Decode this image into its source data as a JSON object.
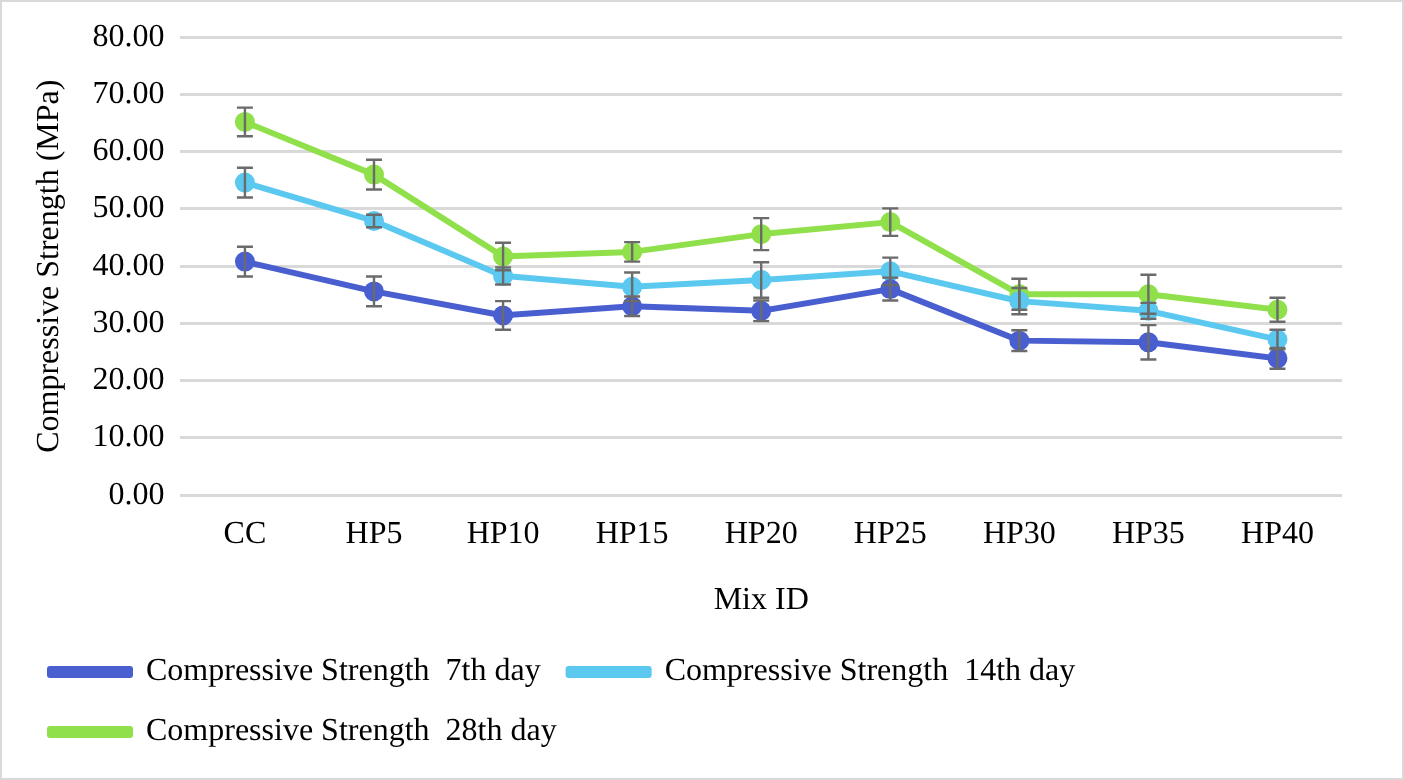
{
  "chart_data": {
    "type": "line",
    "xlabel": "Mix ID",
    "ylabel": "Compressive Strength (MPa)",
    "categories": [
      "CC",
      "HP5",
      "HP10",
      "HP15",
      "HP20",
      "HP25",
      "HP30",
      "HP35",
      "HP40"
    ],
    "series": [
      {
        "name": "Compressive Strength  7th day",
        "color": "#4a5fcf",
        "values": [
          40.8,
          35.6,
          31.4,
          33.0,
          32.2,
          36.0,
          27.0,
          26.7,
          23.9
        ],
        "errors": [
          2.6,
          2.6,
          2.5,
          1.7,
          1.8,
          2.0,
          1.8,
          3.0,
          1.8
        ]
      },
      {
        "name": "Compressive Strength  14th day",
        "color": "#5bc8f0",
        "values": [
          54.6,
          47.9,
          38.3,
          36.4,
          37.6,
          39.1,
          33.9,
          32.2,
          27.2
        ],
        "errors": [
          2.6,
          1.1,
          1.5,
          2.5,
          3.1,
          2.4,
          2.3,
          1.4,
          1.7
        ]
      },
      {
        "name": "Compressive Strength  28th day",
        "color": "#8fe04a",
        "values": [
          65.2,
          56.0,
          41.7,
          42.5,
          45.6,
          47.7,
          35.1,
          35.1,
          32.4
        ],
        "errors": [
          2.5,
          2.6,
          2.4,
          1.7,
          2.8,
          2.4,
          2.7,
          3.4,
          2.1
        ]
      }
    ],
    "ylim": [
      0,
      80
    ],
    "yticks": [
      {
        "value": 0,
        "label": "0.00"
      },
      {
        "value": 10,
        "label": "10.00"
      },
      {
        "value": 20,
        "label": "20.00"
      },
      {
        "value": 30,
        "label": "30.00"
      },
      {
        "value": 40,
        "label": "40.00"
      },
      {
        "value": 50,
        "label": "50.00"
      },
      {
        "value": 60,
        "label": "60.00"
      },
      {
        "value": 70,
        "label": "70.00"
      },
      {
        "value": 80,
        "label": "80.00"
      }
    ],
    "grid": "y",
    "legend": "bottom",
    "marker": "circle",
    "line_style": "solid"
  }
}
